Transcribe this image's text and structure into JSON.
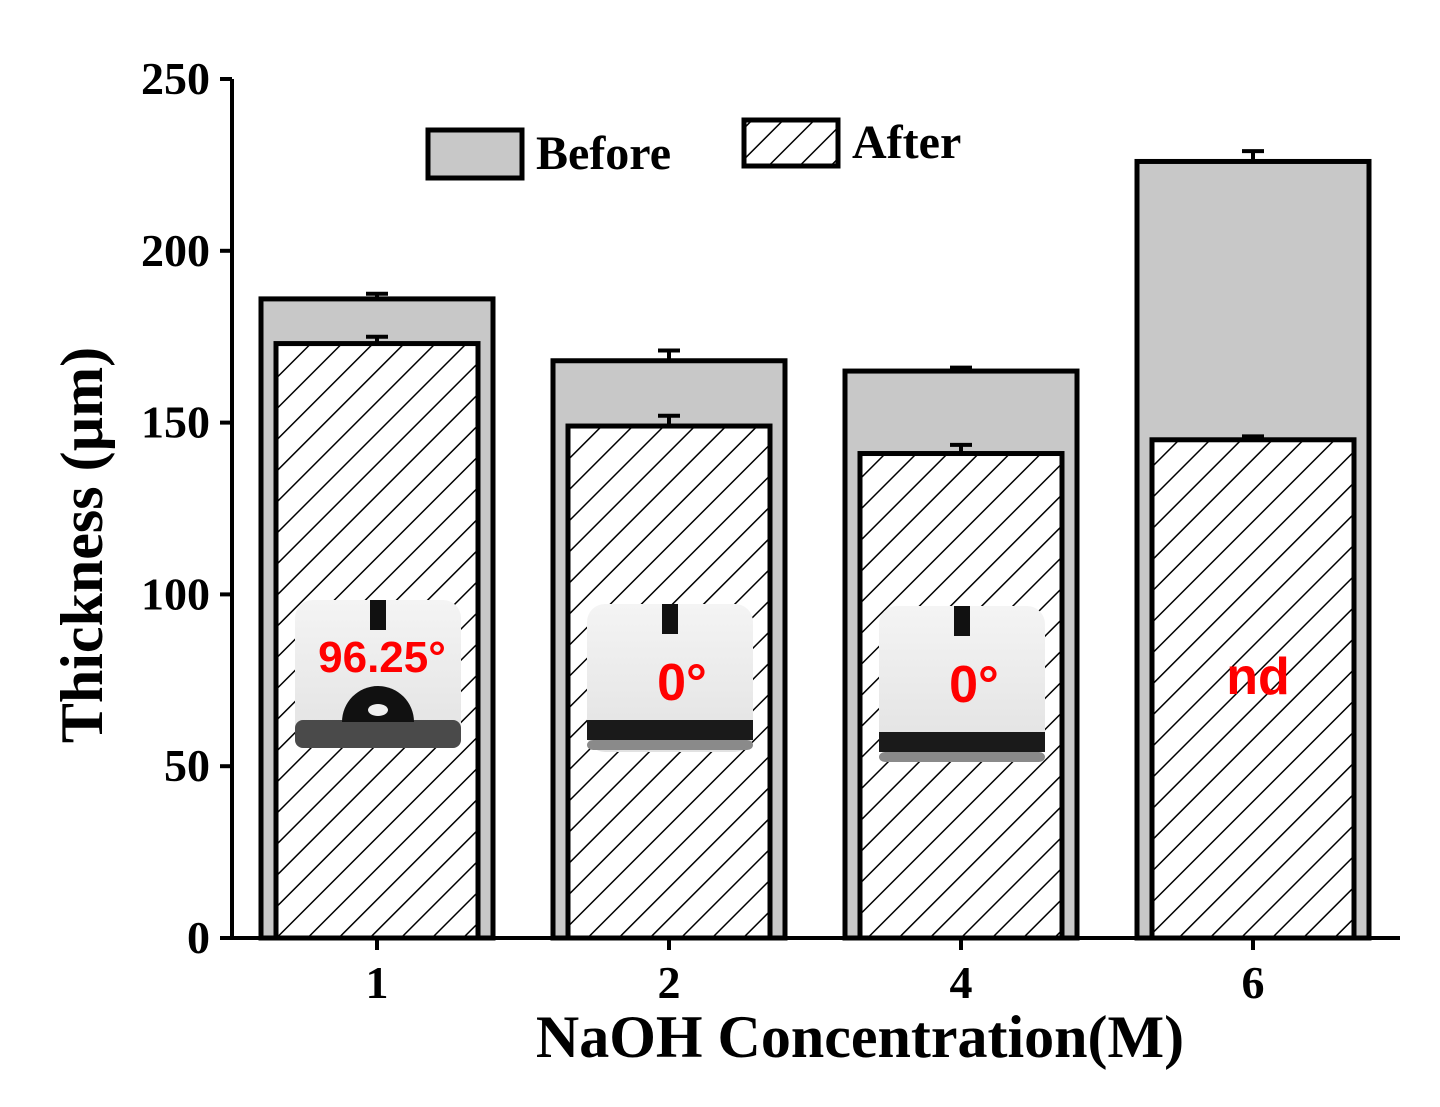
{
  "chart_data": {
    "type": "bar",
    "title": "",
    "xlabel": "NaOH Concentration(M)",
    "ylabel": "Thickness (µm)",
    "ylim": [
      0,
      250
    ],
    "yticks": [
      "0",
      "50",
      "100",
      "150",
      "200",
      "250"
    ],
    "categories": [
      "1",
      "2",
      "4",
      "6"
    ],
    "series": [
      {
        "name": "Before",
        "values": [
          186,
          168,
          165,
          226
        ],
        "errors": [
          1.5,
          3,
          1,
          3
        ],
        "fill": "solid-gray"
      },
      {
        "name": "After",
        "values": [
          173,
          149,
          141,
          145
        ],
        "errors": [
          2,
          3,
          2.5,
          1
        ],
        "fill": "hatched"
      }
    ],
    "annotations": [
      {
        "category": "1",
        "text": "96.25°"
      },
      {
        "category": "2",
        "text": "0°"
      },
      {
        "category": "4",
        "text": "0°"
      },
      {
        "category": "6",
        "text": "nd"
      }
    ],
    "legend": {
      "position": "top-center",
      "entries": [
        "Before",
        "After"
      ]
    },
    "colors": {
      "before_fill": "#c8c8c8",
      "after_fill": "#ffffff",
      "axis": "#000000",
      "annotation": "#ff0000"
    }
  }
}
